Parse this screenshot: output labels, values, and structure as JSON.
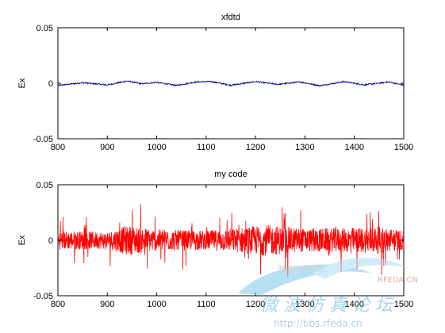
{
  "chart_data": [
    {
      "type": "line",
      "title": "xfdtd",
      "xlabel": "",
      "ylabel": "Ex",
      "xlim": [
        800,
        1500
      ],
      "ylim": [
        -0.05,
        0.05
      ],
      "xticks": [
        800,
        900,
        1000,
        1100,
        1200,
        1300,
        1400,
        1500
      ],
      "yticks": [
        -0.05,
        0,
        0.05
      ],
      "xtick_labels": [
        "800",
        "900",
        "1000",
        "1100",
        "1200",
        "1300",
        "1400",
        "1500"
      ],
      "ytick_labels": [
        "-0.05",
        "0",
        "0.05"
      ],
      "grid": false,
      "series": [
        {
          "color": "#00008b",
          "description_points": {
            "x": [
              800,
              850,
              900,
              940,
              970,
              1000,
              1040,
              1080,
              1110,
              1150,
              1200,
              1245,
              1290,
              1330,
              1380,
              1420,
              1470,
              1500
            ],
            "y": [
              -0.002,
              0.0005,
              -0.0015,
              0.002,
              -0.0005,
              0.0008,
              -0.002,
              0.0012,
              0.0015,
              -0.0018,
              0.0015,
              -0.001,
              0.0012,
              -0.0022,
              0.0015,
              -0.0015,
              0.0012,
              -0.0018
            ]
          }
        }
      ]
    },
    {
      "type": "line",
      "title": "my code",
      "xlabel": "",
      "ylabel": "Ex",
      "xlim": [
        800,
        1500
      ],
      "ylim": [
        -0.05,
        0.05
      ],
      "xticks": [
        800,
        900,
        1000,
        1100,
        1200,
        1300,
        1400,
        1500
      ],
      "yticks": [
        -0.05,
        0,
        0.05
      ],
      "xtick_labels": [
        "800",
        "900",
        "1000",
        "1100",
        "1200",
        "1300",
        "1400",
        "1500"
      ],
      "ytick_labels": [
        "-0.05",
        "0",
        "0.05"
      ],
      "grid": false,
      "series": [
        {
          "color": "#ff0000",
          "amplitude_envelope": {
            "x": [
              800,
              900,
              940,
              1000,
              1100,
              1150,
              1220,
              1300,
              1400,
              1450,
              1500
            ],
            "y": [
              0.025,
              0.022,
              0.038,
              0.028,
              0.025,
              0.03,
              0.04,
              0.03,
              0.032,
              0.035,
              0.025
            ]
          }
        }
      ]
    }
  ],
  "watermark": {
    "site": "RFEDA.CN",
    "url": "http://bbs.rfeda.cn",
    "cn_text": "微 波 仿 真 论 坛",
    "cn_small": "微波仿真论坛"
  }
}
